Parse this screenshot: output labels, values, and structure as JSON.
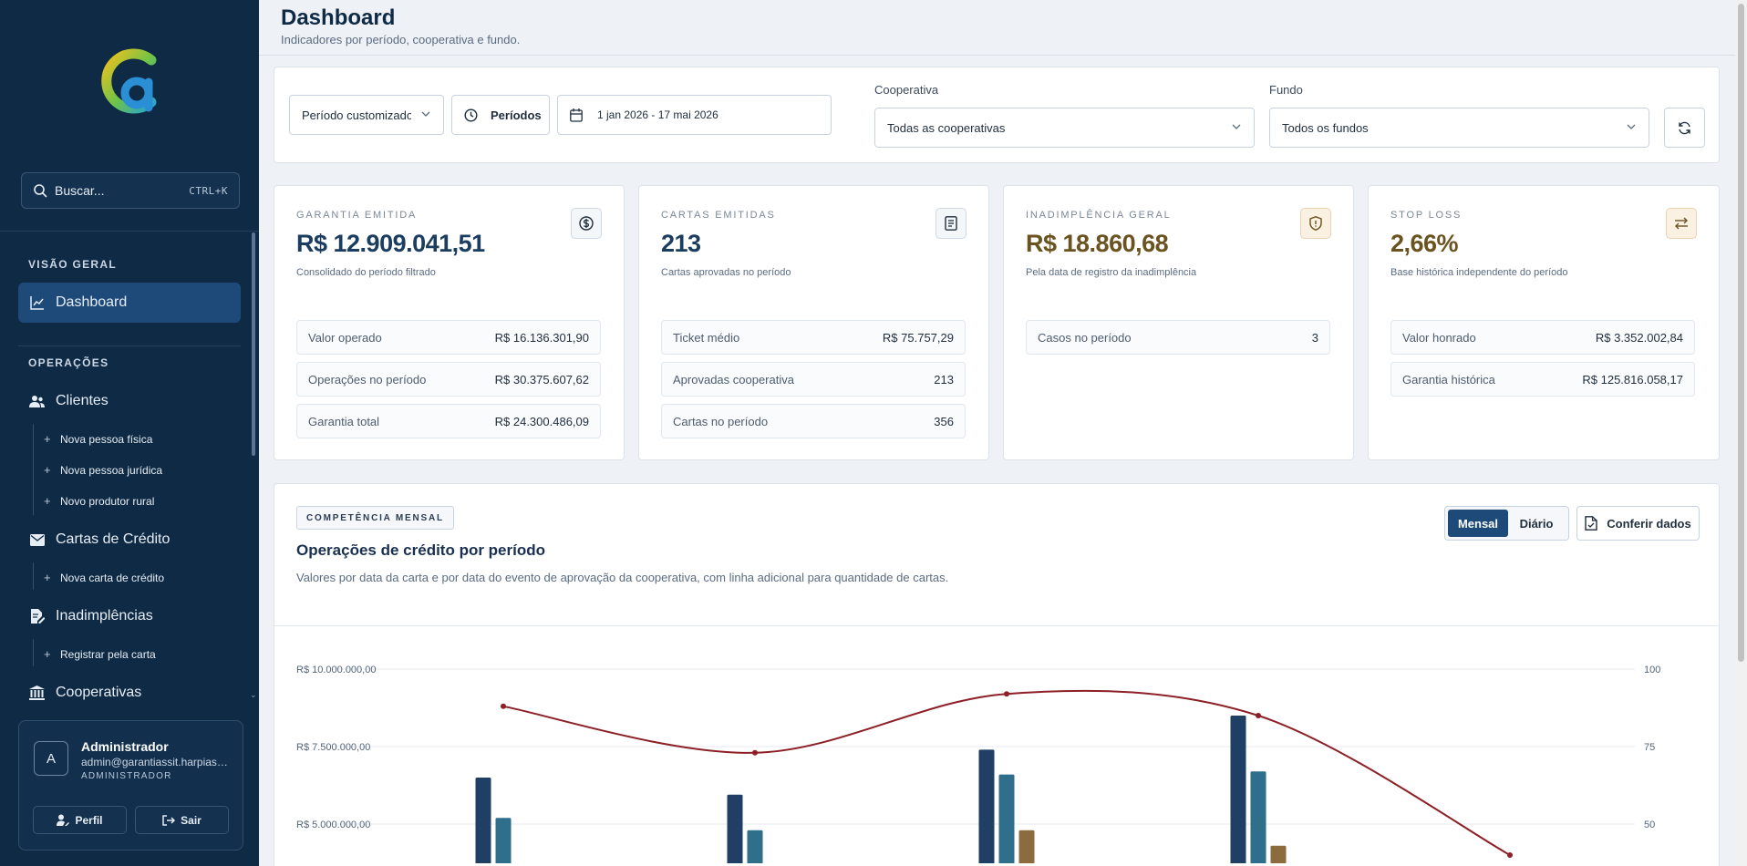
{
  "sidebar": {
    "search_placeholder": "Buscar...",
    "search_shortcut": "CTRL+K",
    "sections": {
      "overview": "VISÃO GERAL",
      "operations": "OPERAÇÕES"
    },
    "items": {
      "dashboard": "Dashboard",
      "clientes": "Clientes",
      "nova_pessoa_fisica": "Nova pessoa física",
      "nova_pessoa_juridica": "Nova pessoa jurídica",
      "novo_produtor_rural": "Novo produtor rural",
      "cartas": "Cartas de Crédito",
      "nova_carta": "Nova carta de crédito",
      "inadimplencias": "Inadimplências",
      "registrar_carta": "Registrar pela carta",
      "cooperativas": "Cooperativas"
    },
    "user": {
      "initial": "A",
      "name": "Administrador",
      "email": "admin@garantiassit.harpiasoftware.com",
      "role": "ADMINISTRADOR",
      "profile_label": "Perfil",
      "logout_label": "Sair"
    }
  },
  "header": {
    "title": "Dashboard",
    "subtitle": "Indicadores por período, cooperativa e fundo."
  },
  "filters": {
    "period_select": "Período customizado",
    "periods_button": "Períodos",
    "date_range": "1 jan 2026 - 17 mai 2026",
    "cooperativa_label": "Cooperativa",
    "cooperativa_value": "Todas as cooperativas",
    "fundo_label": "Fundo",
    "fundo_value": "Todos os fundos"
  },
  "kpis": [
    {
      "label": "GARANTIA EMITIDA",
      "value": "R$ 12.909.041,51",
      "desc": "Consolidado do período filtrado",
      "icon": "dollar-circle-icon",
      "rows": [
        {
          "k": "Valor operado",
          "v": "R$ 16.136.301,90"
        },
        {
          "k": "Operações no período",
          "v": "R$ 30.375.607,62"
        },
        {
          "k": "Garantia total",
          "v": "R$ 24.300.486,09"
        }
      ]
    },
    {
      "label": "CARTAS EMITIDAS",
      "value": "213",
      "desc": "Cartas aprovadas no período",
      "icon": "document-icon",
      "rows": [
        {
          "k": "Ticket médio",
          "v": "R$ 75.757,29"
        },
        {
          "k": "Aprovadas cooperativa",
          "v": "213"
        },
        {
          "k": "Cartas no período",
          "v": "356"
        }
      ]
    },
    {
      "label": "INADIMPLÊNCIA GERAL",
      "value": "R$ 18.860,68",
      "desc": "Pela data de registro da inadimplência",
      "icon": "shield-alert-icon",
      "rows": [
        {
          "k": "Casos no período",
          "v": "3"
        }
      ]
    },
    {
      "label": "STOP LOSS",
      "value": "2,66%",
      "desc": "Base histórica independente do período",
      "icon": "swap-arrows-icon",
      "rows": [
        {
          "k": "Valor honrado",
          "v": "R$ 3.352.002,84"
        },
        {
          "k": "Garantia histórica",
          "v": "R$ 125.816.058,17"
        }
      ]
    }
  ],
  "chart_section": {
    "badge": "COMPETÊNCIA MENSAL",
    "title": "Operações de crédito por período",
    "description": "Valores por data da carta e por data do evento de aprovação da cooperativa, com linha adicional para quantidade de cartas.",
    "toggle_monthly": "Mensal",
    "toggle_daily": "Diário",
    "check_button": "Conferir dados"
  },
  "chart_data": {
    "type": "bar",
    "left_axis_ticks": [
      "R$ 10.000.000,00",
      "R$ 7.500.000,00",
      "R$ 5.000.000,00"
    ],
    "right_axis_ticks": [
      "100",
      "75",
      "50"
    ],
    "ylim_left": [
      0,
      10000000
    ],
    "ylim_right": [
      0,
      100
    ],
    "categories": [
      "",
      "",
      "",
      "",
      ""
    ],
    "series": [
      {
        "type": "bar",
        "axis": "left",
        "color": "#1f3f64",
        "values": [
          6500000,
          5950000,
          7400000,
          8500000,
          null
        ]
      },
      {
        "type": "bar",
        "axis": "left",
        "color": "#2f6f8c",
        "values": [
          5200000,
          4800000,
          6600000,
          6700000,
          null
        ]
      },
      {
        "type": "bar",
        "axis": "left",
        "color": "#8c6b3f",
        "values": [
          null,
          null,
          4800000,
          4300000,
          null
        ]
      },
      {
        "type": "line",
        "axis": "right",
        "color": "#8c2026",
        "values": [
          88,
          73,
          92,
          85,
          40
        ]
      }
    ]
  }
}
